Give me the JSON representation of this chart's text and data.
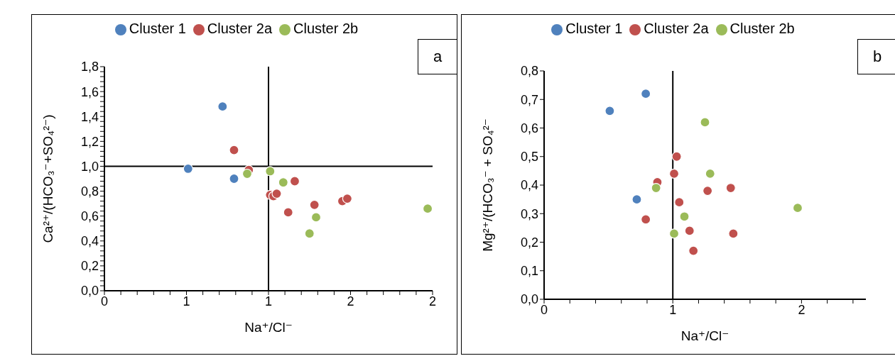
{
  "chart_data": [
    {
      "type": "scatter",
      "xlabel": "Na⁺/Cl⁻",
      "ylabel": "Ca²⁺/(HCO₃⁻+SO₄²⁻)",
      "legend": "top",
      "marker": "circle",
      "annotations": [
        "a"
      ],
      "xlim": [
        0,
        2
      ],
      "ylim": [
        0,
        1.8
      ],
      "xticks": [
        {
          "value": 0,
          "label": "0"
        },
        {
          "value": 0.1,
          "label": null
        },
        {
          "value": 0.2,
          "label": null
        },
        {
          "value": 0.3,
          "label": null
        },
        {
          "value": 0.4,
          "label": null
        },
        {
          "value": 0.5,
          "label": "1"
        },
        {
          "value": 0.6,
          "label": null
        },
        {
          "value": 0.7,
          "label": null
        },
        {
          "value": 0.8,
          "label": null
        },
        {
          "value": 0.9,
          "label": null
        },
        {
          "value": 1,
          "label": "1"
        },
        {
          "value": 1.1,
          "label": null
        },
        {
          "value": 1.2,
          "label": null
        },
        {
          "value": 1.3,
          "label": null
        },
        {
          "value": 1.4,
          "label": null
        },
        {
          "value": 1.5,
          "label": "2"
        },
        {
          "value": 1.6,
          "label": null
        },
        {
          "value": 1.7,
          "label": null
        },
        {
          "value": 1.8,
          "label": null
        },
        {
          "value": 1.9,
          "label": null
        },
        {
          "value": 2,
          "label": "2"
        }
      ],
      "yticks": [
        {
          "value": 0,
          "label": "0,0"
        },
        {
          "value": 0.04,
          "label": null
        },
        {
          "value": 0.08,
          "label": null
        },
        {
          "value": 0.12,
          "label": null
        },
        {
          "value": 0.16,
          "label": null
        },
        {
          "value": 0.2,
          "label": "0,2"
        },
        {
          "value": 0.24,
          "label": null
        },
        {
          "value": 0.28,
          "label": null
        },
        {
          "value": 0.32,
          "label": null
        },
        {
          "value": 0.36,
          "label": null
        },
        {
          "value": 0.4,
          "label": "0,4"
        },
        {
          "value": 0.44,
          "label": null
        },
        {
          "value": 0.48,
          "label": null
        },
        {
          "value": 0.52,
          "label": null
        },
        {
          "value": 0.56,
          "label": null
        },
        {
          "value": 0.6,
          "label": "0,6"
        },
        {
          "value": 0.64,
          "label": null
        },
        {
          "value": 0.68,
          "label": null
        },
        {
          "value": 0.72,
          "label": null
        },
        {
          "value": 0.76,
          "label": null
        },
        {
          "value": 0.8,
          "label": "0,8"
        },
        {
          "value": 0.84,
          "label": null
        },
        {
          "value": 0.88,
          "label": null
        },
        {
          "value": 0.92,
          "label": null
        },
        {
          "value": 0.96,
          "label": null
        },
        {
          "value": 1,
          "label": "1,0"
        },
        {
          "value": 1.04,
          "label": null
        },
        {
          "value": 1.08,
          "label": null
        },
        {
          "value": 1.12,
          "label": null
        },
        {
          "value": 1.16,
          "label": null
        },
        {
          "value": 1.2,
          "label": "1,2"
        },
        {
          "value": 1.24,
          "label": null
        },
        {
          "value": 1.28,
          "label": null
        },
        {
          "value": 1.32,
          "label": null
        },
        {
          "value": 1.36,
          "label": null
        },
        {
          "value": 1.4,
          "label": "1,4"
        },
        {
          "value": 1.44,
          "label": null
        },
        {
          "value": 1.48,
          "label": null
        },
        {
          "value": 1.52,
          "label": null
        },
        {
          "value": 1.56,
          "label": null
        },
        {
          "value": 1.6,
          "label": "1,6"
        },
        {
          "value": 1.64,
          "label": null
        },
        {
          "value": 1.68,
          "label": null
        },
        {
          "value": 1.72,
          "label": null
        },
        {
          "value": 1.76,
          "label": null
        },
        {
          "value": 1.8,
          "label": "1,8"
        }
      ],
      "ref_lines": [
        {
          "axis": "y",
          "value": 1,
          "color": "#000000"
        },
        {
          "axis": "x",
          "value": 1,
          "color": "#000000"
        }
      ],
      "series": [
        {
          "name": "Cluster 1",
          "color": "#4f81bd",
          "x": [
            0.72,
            0.51,
            0.79
          ],
          "values": [
            1.48,
            0.98,
            0.9
          ]
        },
        {
          "name": "Cluster 2a",
          "color": "#c0504d",
          "x": [
            0.79,
            0.88,
            1.01,
            1.03,
            1.05,
            1.16,
            1.12,
            1.28,
            1.45,
            1.48
          ],
          "values": [
            1.13,
            0.97,
            0.77,
            0.76,
            0.78,
            0.88,
            0.63,
            0.69,
            0.72,
            0.74
          ]
        },
        {
          "name": "Cluster 2b",
          "color": "#9bbb59",
          "x": [
            0.87,
            1.01,
            1.09,
            1.97,
            1.29,
            1.25
          ],
          "values": [
            0.94,
            0.96,
            0.87,
            0.66,
            0.59,
            0.46
          ]
        }
      ]
    },
    {
      "type": "scatter",
      "xlabel": "Na⁺/Cl⁻",
      "ylabel": "Mg²⁺/(HCO₃⁻ + SO₄²⁻",
      "legend": "top",
      "marker": "circle",
      "annotations": [
        "b"
      ],
      "xlim": [
        0,
        2.5
      ],
      "ylim": [
        0,
        0.8
      ],
      "xticks": [
        {
          "value": 0,
          "label": "0"
        },
        {
          "value": 0.2,
          "label": null
        },
        {
          "value": 0.4,
          "label": null
        },
        {
          "value": 0.6,
          "label": null
        },
        {
          "value": 0.8,
          "label": null
        },
        {
          "value": 1,
          "label": "1"
        },
        {
          "value": 1.2,
          "label": null
        },
        {
          "value": 1.4,
          "label": null
        },
        {
          "value": 1.6,
          "label": null
        },
        {
          "value": 1.8,
          "label": null
        },
        {
          "value": 2,
          "label": "2"
        },
        {
          "value": 2.2,
          "label": null
        },
        {
          "value": 2.4,
          "label": null
        }
      ],
      "yticks": [
        {
          "value": 0,
          "label": "0,0"
        },
        {
          "value": 0.1,
          "label": "0,1"
        },
        {
          "value": 0.2,
          "label": "0,2"
        },
        {
          "value": 0.3,
          "label": "0,3"
        },
        {
          "value": 0.4,
          "label": "0,4"
        },
        {
          "value": 0.5,
          "label": "0,5"
        },
        {
          "value": 0.6,
          "label": "0,6"
        },
        {
          "value": 0.7,
          "label": "0,7"
        },
        {
          "value": 0.8,
          "label": "0,8"
        }
      ],
      "ref_lines": [
        {
          "axis": "x",
          "value": 1,
          "color": "#000000"
        }
      ],
      "series": [
        {
          "name": "Cluster 1",
          "color": "#4f81bd",
          "x": [
            0.51,
            0.79,
            0.72
          ],
          "values": [
            0.66,
            0.72,
            0.35
          ]
        },
        {
          "name": "Cluster 2a",
          "color": "#c0504d",
          "x": [
            1.03,
            1.01,
            0.88,
            1.27,
            1.45,
            1.05,
            0.79,
            1.13,
            1.47,
            1.16
          ],
          "values": [
            0.5,
            0.44,
            0.41,
            0.38,
            0.39,
            0.34,
            0.28,
            0.24,
            0.23,
            0.17
          ]
        },
        {
          "name": "Cluster 2b",
          "color": "#9bbb59",
          "x": [
            1.25,
            1.29,
            0.87,
            1.97,
            1.09,
            1.01
          ],
          "values": [
            0.62,
            0.44,
            0.39,
            0.32,
            0.29,
            0.23
          ]
        }
      ]
    }
  ]
}
